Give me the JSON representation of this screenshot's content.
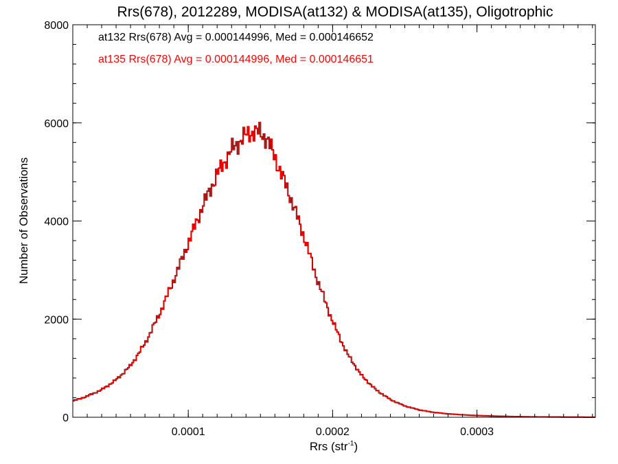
{
  "chart_data": {
    "type": "line",
    "step": true,
    "title": "Rrs(678), 2012289, MODISA(at132) & MODISA(at135), Oligotrophic",
    "xlabel": "Rrs (str",
    "xlabel_sup": "-1",
    "xlabel_suffix": ")",
    "ylabel": "Number of Observations",
    "xlim": [
      2e-05,
      0.000382
    ],
    "ylim": [
      0,
      8000
    ],
    "x_ticks": [
      {
        "value": 0.0001,
        "label": "0.0001"
      },
      {
        "value": 0.0002,
        "label": "0.0002"
      },
      {
        "value": 0.0003,
        "label": "0.0003"
      }
    ],
    "x_minor_step": 1e-05,
    "y_ticks": [
      {
        "value": 0,
        "label": "0"
      },
      {
        "value": 2000,
        "label": "2000"
      },
      {
        "value": 4000,
        "label": "4000"
      },
      {
        "value": 6000,
        "label": "6000"
      },
      {
        "value": 8000,
        "label": "8000"
      }
    ],
    "y_minor_step": 400,
    "legend_position": "top-left",
    "annotations": [
      {
        "text": "at132 Rrs(678) Avg = 0.000144996, Med = 0.000146652",
        "color": "#000000"
      },
      {
        "text": "at135 Rrs(678) Avg = 0.000144996, Med = 0.000146651",
        "color": "#ff0000"
      }
    ],
    "x": [
      2e-05,
      3e-05,
      4e-05,
      5e-05,
      6e-05,
      7e-05,
      8e-05,
      9e-05,
      0.0001,
      0.00011,
      0.00012,
      0.00013,
      0.00014,
      0.000145,
      0.00015,
      0.000155,
      0.00016,
      0.00017,
      0.00018,
      0.00019,
      0.0002,
      0.00021,
      0.00022,
      0.00023,
      0.00024,
      0.00025,
      0.00026,
      0.00027,
      0.00028,
      0.00029,
      0.0003,
      0.00031,
      0.00032,
      0.00033,
      0.00034,
      0.00035,
      0.00036,
      0.00037,
      0.00038
    ],
    "series": [
      {
        "name": "at132",
        "color": "#000000",
        "values": [
          330,
          430,
          560,
          760,
          1050,
          1500,
          2100,
          2800,
          3550,
          4300,
          4950,
          5450,
          5750,
          5820,
          5800,
          5650,
          5300,
          4550,
          3700,
          2750,
          1950,
          1300,
          850,
          560,
          360,
          230,
          150,
          100,
          70,
          50,
          35,
          25,
          18,
          12,
          8,
          6,
          4,
          3,
          2
        ]
      },
      {
        "name": "at135",
        "color": "#ff0000",
        "values": [
          330,
          430,
          560,
          760,
          1050,
          1500,
          2100,
          2800,
          3550,
          4300,
          4950,
          5450,
          5750,
          5820,
          5800,
          5650,
          5300,
          4550,
          3700,
          2750,
          1950,
          1300,
          850,
          560,
          360,
          230,
          150,
          100,
          70,
          50,
          35,
          25,
          18,
          12,
          8,
          6,
          4,
          3,
          2
        ]
      }
    ]
  }
}
